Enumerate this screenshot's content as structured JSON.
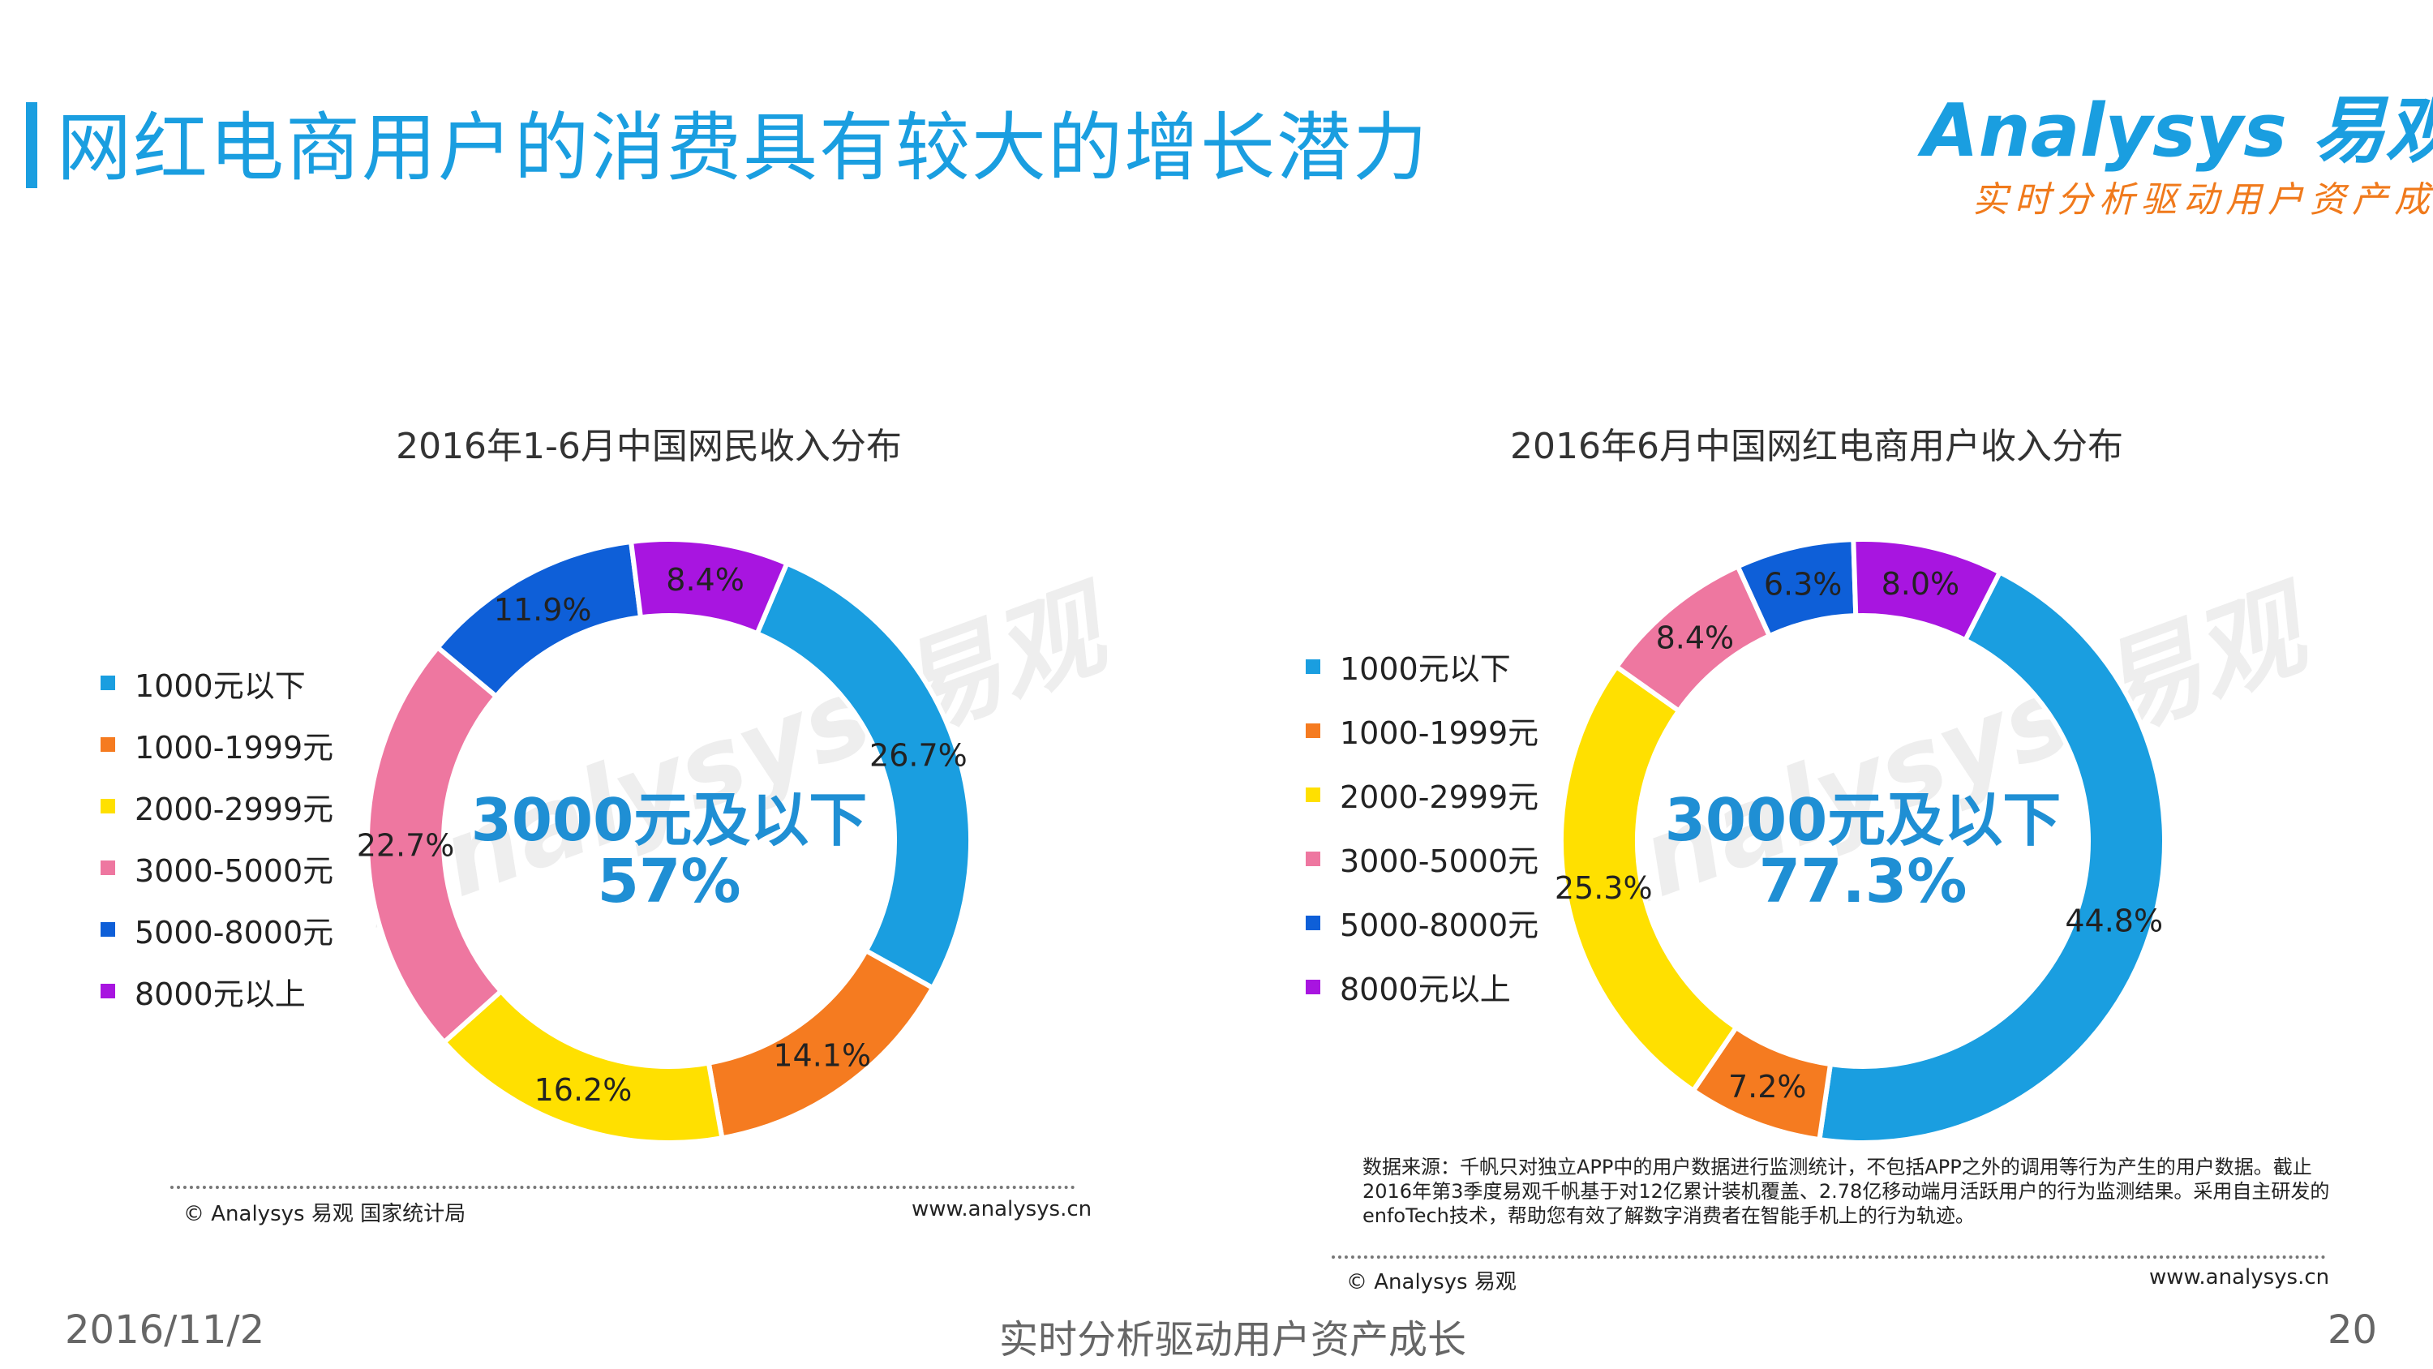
{
  "page": {
    "title": "网红电商用户的消费具有较大的增长潜力",
    "date": "2016/11/2",
    "slogan": "实时分析驱动用户资产成长",
    "page_number": "20"
  },
  "logo": {
    "wordmark": "Analysys 易观",
    "slogan": "实时分析驱动用户资产成长"
  },
  "colors": {
    "title": "#1a9ee0",
    "center_text": "#1f8fd4",
    "series": [
      "#1a9ee0",
      "#f57b20",
      "#ffe000",
      "#ee77a0",
      "#0e5fd8",
      "#a815e0"
    ]
  },
  "legend_labels": [
    "1000元以下",
    "1000-1999元",
    "2000-2999元",
    "3000-5000元",
    "5000-8000元",
    "8000元以上"
  ],
  "chart_data": [
    {
      "type": "pie",
      "title": "2016年1-6月中国网民收入分布",
      "categories": [
        "1000元以下",
        "1000-1999元",
        "2000-2999元",
        "3000-5000元",
        "5000-8000元",
        "8000元以上"
      ],
      "values": [
        26.7,
        14.1,
        16.2,
        22.7,
        11.9,
        8.4
      ],
      "labels": [
        "26.7%",
        "14.1%",
        "16.2%",
        "22.7%",
        "11.9%",
        "8.4%"
      ],
      "center_text": [
        "3000元及以下",
        "57%"
      ],
      "legend": "left"
    },
    {
      "type": "pie",
      "title": "2016年6月中国网红电商用户收入分布",
      "categories": [
        "1000元以下",
        "1000-1999元",
        "2000-2999元",
        "3000-5000元",
        "5000-8000元",
        "8000元以上"
      ],
      "values": [
        44.8,
        7.2,
        25.3,
        8.4,
        6.3,
        8.0
      ],
      "labels": [
        "44.8%",
        "7.2%",
        "25.3%",
        "8.4%",
        "6.3%",
        "8.0%"
      ],
      "center_text": [
        "3000元及以下",
        "77.3%"
      ],
      "legend": "left"
    }
  ],
  "footer": {
    "left_copyright": "© Analysys 易观 国家统计局",
    "left_url": "www.analysys.cn",
    "right_copyright": "© Analysys 易观",
    "right_url": "www.analysys.cn",
    "source_note": "数据来源：千帆只对独立APP中的用户数据进行监测统计，不包括APP之外的调用等行为产生的用户数据。截止2016年第3季度易观千帆基于对12亿累计装机覆盖、2.78亿移动端月活跃用户的行为监测结果。采用自主研发的enfoTech技术，帮助您有效了解数字消费者在智能手机上的行为轨迹。"
  }
}
